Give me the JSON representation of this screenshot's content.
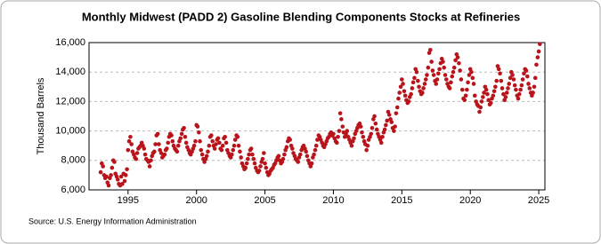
{
  "chart_data": {
    "type": "scatter",
    "title": "Monthly Midwest (PADD 2) Gasoline Blending Components Stocks at Refineries",
    "ylabel": "Thousand Barrels",
    "source": "Source: U.S. Energy Information Administration",
    "color": "#b8141b",
    "grid": true,
    "xlim": [
      1992.15,
      2025.45
    ],
    "xticks": [
      1995,
      2000,
      2005,
      2010,
      2015,
      2020,
      2025
    ],
    "ylim": [
      6000,
      16000
    ],
    "yticks": [
      {
        "value": 6000,
        "label": "6,000"
      },
      {
        "value": 8000,
        "label": "8,000"
      },
      {
        "value": 10000,
        "label": "10,000"
      },
      {
        "value": 12000,
        "label": "12,000"
      },
      {
        "value": 14000,
        "label": "14,000"
      },
      {
        "value": 16000,
        "label": "16,000"
      }
    ],
    "x": [
      1993,
      1993.08,
      1993.17,
      1993.25,
      1993.33,
      1993.42,
      1993.5,
      1993.58,
      1993.67,
      1993.75,
      1993.83,
      1993.92,
      1994,
      1994.08,
      1994.17,
      1994.25,
      1994.33,
      1994.42,
      1994.5,
      1994.58,
      1994.67,
      1994.75,
      1994.83,
      1994.92,
      1995,
      1995.08,
      1995.17,
      1995.25,
      1995.33,
      1995.42,
      1995.5,
      1995.58,
      1995.67,
      1995.75,
      1995.83,
      1995.92,
      1996,
      1996.08,
      1996.17,
      1996.25,
      1996.33,
      1996.42,
      1996.5,
      1996.58,
      1996.67,
      1996.75,
      1996.83,
      1996.92,
      1997,
      1997.08,
      1997.17,
      1997.25,
      1997.33,
      1997.42,
      1997.5,
      1997.58,
      1997.67,
      1997.75,
      1997.83,
      1997.92,
      1998,
      1998.08,
      1998.17,
      1998.25,
      1998.33,
      1998.42,
      1998.5,
      1998.58,
      1998.67,
      1998.75,
      1998.83,
      1998.92,
      1999,
      1999.08,
      1999.17,
      1999.25,
      1999.33,
      1999.42,
      1999.5,
      1999.58,
      1999.67,
      1999.75,
      1999.83,
      1999.92,
      2000,
      2000.08,
      2000.17,
      2000.25,
      2000.33,
      2000.42,
      2000.5,
      2000.58,
      2000.67,
      2000.75,
      2000.83,
      2000.92,
      2001,
      2001.08,
      2001.17,
      2001.25,
      2001.33,
      2001.42,
      2001.5,
      2001.58,
      2001.67,
      2001.75,
      2001.83,
      2001.92,
      2002,
      2002.08,
      2002.17,
      2002.25,
      2002.33,
      2002.42,
      2002.5,
      2002.58,
      2002.67,
      2002.75,
      2002.83,
      2002.92,
      2003,
      2003.08,
      2003.17,
      2003.25,
      2003.33,
      2003.42,
      2003.5,
      2003.58,
      2003.67,
      2003.75,
      2003.83,
      2003.92,
      2004,
      2004.08,
      2004.17,
      2004.25,
      2004.33,
      2004.42,
      2004.5,
      2004.58,
      2004.67,
      2004.75,
      2004.83,
      2004.92,
      2005,
      2005.08,
      2005.17,
      2005.25,
      2005.33,
      2005.42,
      2005.5,
      2005.58,
      2005.67,
      2005.75,
      2005.83,
      2005.92,
      2006,
      2006.08,
      2006.17,
      2006.25,
      2006.33,
      2006.42,
      2006.5,
      2006.58,
      2006.67,
      2006.75,
      2006.83,
      2006.92,
      2007,
      2007.08,
      2007.17,
      2007.25,
      2007.33,
      2007.42,
      2007.5,
      2007.58,
      2007.67,
      2007.75,
      2007.83,
      2007.92,
      2008,
      2008.08,
      2008.17,
      2008.25,
      2008.33,
      2008.42,
      2008.5,
      2008.58,
      2008.67,
      2008.75,
      2008.83,
      2008.92,
      2009,
      2009.08,
      2009.17,
      2009.25,
      2009.33,
      2009.42,
      2009.5,
      2009.58,
      2009.67,
      2009.75,
      2009.83,
      2009.92,
      2010,
      2010.08,
      2010.17,
      2010.25,
      2010.33,
      2010.42,
      2010.5,
      2010.58,
      2010.67,
      2010.75,
      2010.83,
      2010.92,
      2011,
      2011.08,
      2011.17,
      2011.25,
      2011.33,
      2011.42,
      2011.5,
      2011.58,
      2011.67,
      2011.75,
      2011.83,
      2011.92,
      2012,
      2012.08,
      2012.17,
      2012.25,
      2012.33,
      2012.42,
      2012.5,
      2012.58,
      2012.67,
      2012.75,
      2012.83,
      2012.92,
      2013,
      2013.08,
      2013.17,
      2013.25,
      2013.33,
      2013.42,
      2013.5,
      2013.58,
      2013.67,
      2013.75,
      2013.83,
      2013.92,
      2014,
      2014.08,
      2014.17,
      2014.25,
      2014.33,
      2014.42,
      2014.5,
      2014.58,
      2014.67,
      2014.75,
      2014.83,
      2014.92,
      2015,
      2015.08,
      2015.17,
      2015.25,
      2015.33,
      2015.42,
      2015.5,
      2015.58,
      2015.67,
      2015.75,
      2015.83,
      2015.92,
      2016,
      2016.08,
      2016.17,
      2016.25,
      2016.33,
      2016.42,
      2016.5,
      2016.58,
      2016.67,
      2016.75,
      2016.83,
      2016.92,
      2017,
      2017.08,
      2017.17,
      2017.25,
      2017.33,
      2017.42,
      2017.5,
      2017.58,
      2017.67,
      2017.75,
      2017.83,
      2017.92,
      2018,
      2018.08,
      2018.17,
      2018.25,
      2018.33,
      2018.42,
      2018.5,
      2018.58,
      2018.67,
      2018.75,
      2018.83,
      2018.92,
      2019,
      2019.08,
      2019.17,
      2019.25,
      2019.33,
      2019.42,
      2019.5,
      2019.58,
      2019.67,
      2019.75,
      2019.83,
      2019.92,
      2020,
      2020.08,
      2020.17,
      2020.25,
      2020.33,
      2020.42,
      2020.5,
      2020.58,
      2020.67,
      2020.75,
      2020.83,
      2020.92,
      2021,
      2021.08,
      2021.17,
      2021.25,
      2021.33,
      2021.42,
      2021.5,
      2021.58,
      2021.67,
      2021.75,
      2021.83,
      2021.92,
      2022,
      2022.08,
      2022.17,
      2022.25,
      2022.33,
      2022.42,
      2022.5,
      2022.58,
      2022.67,
      2022.75,
      2022.83,
      2022.92,
      2023,
      2023.08,
      2023.17,
      2023.25,
      2023.33,
      2023.42,
      2023.5,
      2023.58,
      2023.67,
      2023.75,
      2023.83,
      2023.92,
      2024,
      2024.08,
      2024.17,
      2024.25,
      2024.33,
      2024.42,
      2024.5,
      2024.58,
      2024.67,
      2024.75,
      2024.83,
      2024.92,
      2025,
      2025.08
    ],
    "values": [
      7200,
      7800,
      7600,
      7000,
      6800,
      6900,
      6500,
      6300,
      6800,
      7000,
      7500,
      8000,
      7900,
      7100,
      6900,
      6700,
      6400,
      6300,
      6900,
      6400,
      7100,
      6600,
      7000,
      7400,
      8700,
      9300,
      9600,
      9100,
      8600,
      8400,
      8200,
      8100,
      8500,
      8800,
      8900,
      9000,
      9200,
      9000,
      8800,
      8400,
      8100,
      8000,
      7900,
      7600,
      8000,
      8300,
      8500,
      8600,
      9100,
      9700,
      9800,
      9100,
      8700,
      8500,
      8200,
      8300,
      8400,
      8700,
      8800,
      9200,
      9600,
      9800,
      9700,
      9300,
      9000,
      8800,
      8700,
      8600,
      9000,
      9300,
      9500,
      9800,
      10100,
      10200,
      9600,
      9200,
      8900,
      8700,
      8500,
      8400,
      8600,
      8800,
      9000,
      9300,
      10400,
      10300,
      9900,
      9300,
      8700,
      8400,
      8100,
      7900,
      8100,
      8300,
      8600,
      9000,
      9600,
      9700,
      9300,
      9000,
      8800,
      9100,
      9400,
      9500,
      9200,
      8800,
      8700,
      9000,
      9500,
      9600,
      9200,
      8700,
      8500,
      8300,
      8200,
      8400,
      8700,
      9000,
      9400,
      9700,
      9600,
      9000,
      8600,
      8200,
      7800,
      7600,
      7400,
      7500,
      7800,
      8100,
      8400,
      8700,
      8800,
      8400,
      8100,
      7800,
      7500,
      7300,
      7200,
      7300,
      7600,
      7900,
      8100,
      8500,
      7800,
      7500,
      7200,
      7000,
      7100,
      7300,
      7400,
      7500,
      7700,
      7800,
      8000,
      8200,
      8300,
      8000,
      7800,
      7900,
      8100,
      8400,
      8700,
      8900,
      9300,
      9500,
      9400,
      9000,
      8800,
      8500,
      8300,
      8100,
      8000,
      7900,
      8200,
      8400,
      8700,
      8900,
      9000,
      8800,
      8600,
      8300,
      8000,
      7800,
      7600,
      7800,
      8200,
      8400,
      8700,
      9000,
      9400,
      9700,
      9600,
      9400,
      9200,
      9000,
      8900,
      9100,
      9300,
      9500,
      9600,
      9800,
      9900,
      9700,
      9800,
      9500,
      9300,
      9200,
      9600,
      10000,
      11200,
      10800,
      10300,
      9900,
      9600,
      9800,
      10000,
      9600,
      9400,
      9200,
      9000,
      9300,
      9500,
      9800,
      10000,
      10200,
      10400,
      10500,
      10300,
      9900,
      9600,
      9300,
      9100,
      8700,
      9000,
      9400,
      9600,
      9800,
      10200,
      10800,
      11000,
      10500,
      10100,
      9800,
      9600,
      9400,
      9200,
      9600,
      9900,
      10100,
      10400,
      10700,
      11300,
      11100,
      10800,
      10600,
      10200,
      10000,
      10300,
      11200,
      11600,
      12200,
      12600,
      13000,
      13500,
      13200,
      12700,
      12400,
      12100,
      11900,
      12000,
      12300,
      12500,
      12900,
      13300,
      13600,
      14200,
      14000,
      13400,
      13000,
      12700,
      12500,
      12600,
      12900,
      13200,
      13500,
      13800,
      14300,
      15300,
      15500,
      14700,
      14100,
      13800,
      13400,
      13200,
      13500,
      13900,
      14200,
      14600,
      14900,
      14700,
      14300,
      13800,
      13500,
      13200,
      13000,
      12900,
      13300,
      13700,
      14000,
      14300,
      14800,
      15200,
      15000,
      14600,
      14100,
      13500,
      12800,
      12200,
      12100,
      12400,
      12800,
      13300,
      13800,
      14200,
      14000,
      13600,
      13200,
      12400,
      12000,
      11800,
      11700,
      11300,
      11600,
      12000,
      12300,
      12600,
      13000,
      12800,
      12500,
      12100,
      11800,
      11900,
      12200,
      12400,
      12700,
      13000,
      13400,
      14400,
      14200,
      13900,
      13400,
      12900,
      12500,
      12100,
      12300,
      12600,
      12900,
      13200,
      13600,
      14000,
      13800,
      13500,
      13100,
      12800,
      12400,
      12200,
      12500,
      12800,
      13100,
      13500,
      13900,
      14200,
      14100,
      13700,
      13200,
      12900,
      12600,
      12400,
      12600,
      13000,
      13600,
      14500,
      15000,
      15400,
      15900
    ]
  }
}
